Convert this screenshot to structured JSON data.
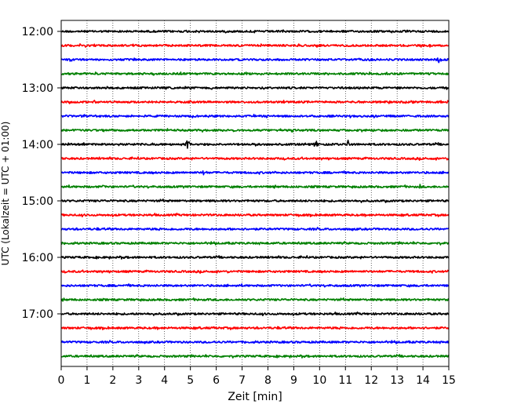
{
  "chart_data": {
    "type": "line",
    "title": "",
    "xlabel": "Zeit  [min]",
    "ylabel": "UTC (Lokalzeit = UTC + 01:00)",
    "xlim": [
      0,
      15
    ],
    "x_ticks": [
      0,
      1,
      2,
      3,
      4,
      5,
      6,
      7,
      8,
      9,
      10,
      11,
      12,
      13,
      14,
      15
    ],
    "x_tick_labels": [
      "0",
      "1",
      "2",
      "3",
      "4",
      "5",
      "6",
      "7",
      "8",
      "9",
      "10",
      "11",
      "12",
      "13",
      "14",
      "15"
    ],
    "y_tick_labels": [
      "12:00",
      "13:00",
      "14:00",
      "15:00",
      "16:00",
      "17:00"
    ],
    "vertical_grid": true,
    "grid_style": "dotted",
    "trace_colors": [
      "#000000",
      "#ff0000",
      "#0000ff",
      "#008000"
    ],
    "traces": [
      {
        "start": "12:00",
        "color": "#000000",
        "events": []
      },
      {
        "start": "12:15",
        "color": "#ff0000",
        "events": []
      },
      {
        "start": "12:30",
        "color": "#0000ff",
        "events": [
          {
            "t": 14.6,
            "amp": 0.5
          }
        ]
      },
      {
        "start": "12:45",
        "color": "#008000",
        "events": []
      },
      {
        "start": "13:00",
        "color": "#000000",
        "events": []
      },
      {
        "start": "13:15",
        "color": "#ff0000",
        "events": []
      },
      {
        "start": "13:30",
        "color": "#0000ff",
        "events": [
          {
            "t": 12.1,
            "amp": 0.45
          }
        ]
      },
      {
        "start": "13:45",
        "color": "#008000",
        "events": []
      },
      {
        "start": "14:00",
        "color": "#000000",
        "events": [
          {
            "t": 4.9,
            "amp": 1.6
          },
          {
            "t": 9.85,
            "amp": 0.9
          },
          {
            "t": 11.1,
            "amp": 0.7
          }
        ]
      },
      {
        "start": "14:15",
        "color": "#ff0000",
        "events": []
      },
      {
        "start": "14:30",
        "color": "#0000ff",
        "events": [
          {
            "t": 5.5,
            "amp": 0.45
          }
        ]
      },
      {
        "start": "14:45",
        "color": "#008000",
        "events": [
          {
            "t": 1.6,
            "amp": 0.4
          },
          {
            "t": 13.9,
            "amp": 0.35
          }
        ]
      },
      {
        "start": "15:00",
        "color": "#000000",
        "events": []
      },
      {
        "start": "15:15",
        "color": "#ff0000",
        "events": []
      },
      {
        "start": "15:30",
        "color": "#0000ff",
        "events": []
      },
      {
        "start": "15:45",
        "color": "#008000",
        "events": []
      },
      {
        "start": "16:00",
        "color": "#000000",
        "events": []
      },
      {
        "start": "16:15",
        "color": "#ff0000",
        "events": []
      },
      {
        "start": "16:30",
        "color": "#0000ff",
        "events": []
      },
      {
        "start": "16:45",
        "color": "#008000",
        "events": []
      },
      {
        "start": "17:00",
        "color": "#000000",
        "events": []
      },
      {
        "start": "17:15",
        "color": "#ff0000",
        "events": []
      },
      {
        "start": "17:30",
        "color": "#0000ff",
        "events": []
      },
      {
        "start": "17:45",
        "color": "#008000",
        "events": []
      }
    ]
  }
}
